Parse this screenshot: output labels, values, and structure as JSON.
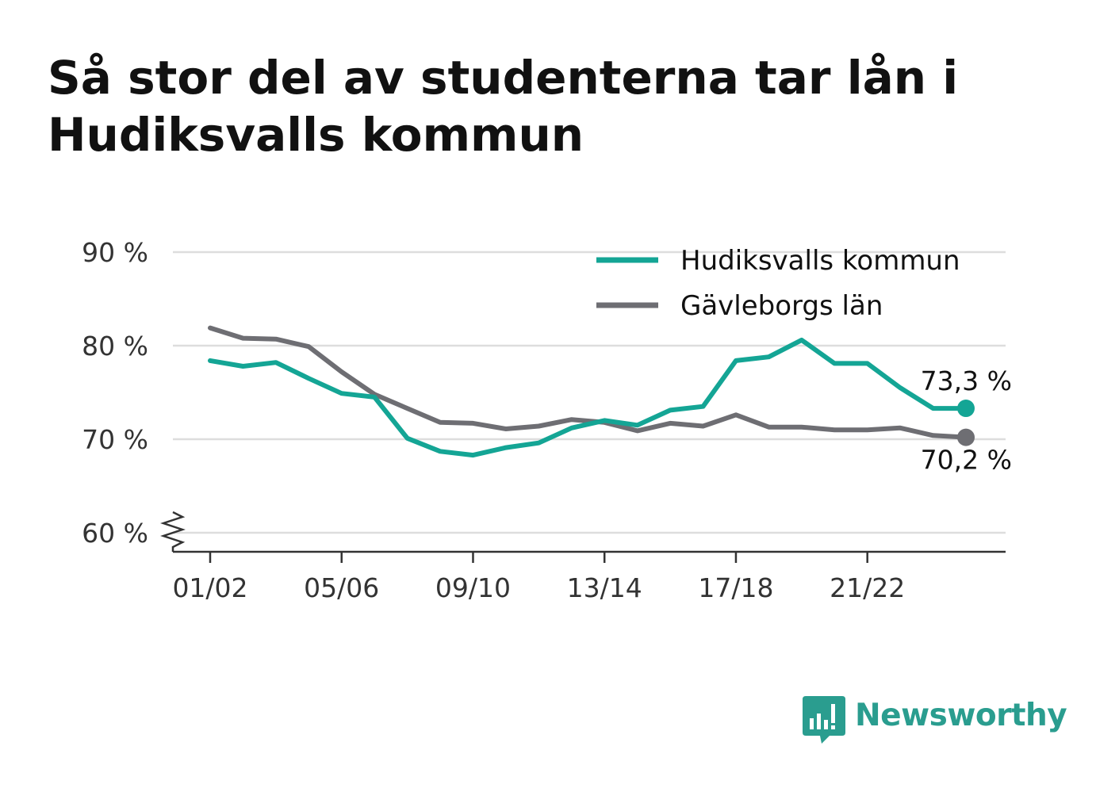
{
  "title": "Så stor del av studenterna tar lån i Hudiksvalls kommun",
  "brand": {
    "name": "Newsworthy",
    "color": "#2a9d8f"
  },
  "chart_data": {
    "type": "line",
    "x": [
      "01/02",
      "02/03",
      "03/04",
      "04/05",
      "05/06",
      "06/07",
      "07/08",
      "08/09",
      "09/10",
      "10/11",
      "11/12",
      "12/13",
      "13/14",
      "14/15",
      "15/16",
      "16/17",
      "17/18",
      "18/19",
      "19/20",
      "20/21",
      "21/22",
      "22/23",
      "23/24",
      "24/25"
    ],
    "x_ticks": [
      "01/02",
      "05/06",
      "09/10",
      "13/14",
      "17/18",
      "21/22"
    ],
    "y_ticks": [
      "60 %",
      "70 %",
      "80 %",
      "90 %"
    ],
    "ylim": [
      60,
      90
    ],
    "y_break": true,
    "grid": true,
    "legend_position": "top-right",
    "series": [
      {
        "name": "Hudiksvalls kommun",
        "color": "#14a595",
        "values": [
          78.4,
          77.8,
          78.2,
          76.5,
          74.9,
          74.5,
          70.1,
          68.7,
          68.3,
          69.1,
          69.6,
          71.2,
          72.0,
          71.5,
          73.1,
          73.5,
          78.4,
          78.8,
          80.6,
          78.1,
          78.1,
          75.5,
          73.3,
          73.3
        ],
        "end_label": "73,3 %"
      },
      {
        "name": "Gävleborgs län",
        "color": "#6e6e73",
        "values": [
          81.9,
          80.8,
          80.7,
          79.9,
          77.2,
          74.8,
          73.3,
          71.8,
          71.7,
          71.1,
          71.4,
          72.1,
          71.8,
          70.9,
          71.7,
          71.4,
          72.6,
          71.3,
          71.3,
          71.0,
          71.0,
          71.2,
          70.4,
          70.2
        ],
        "end_label": "70,2 %"
      }
    ]
  }
}
